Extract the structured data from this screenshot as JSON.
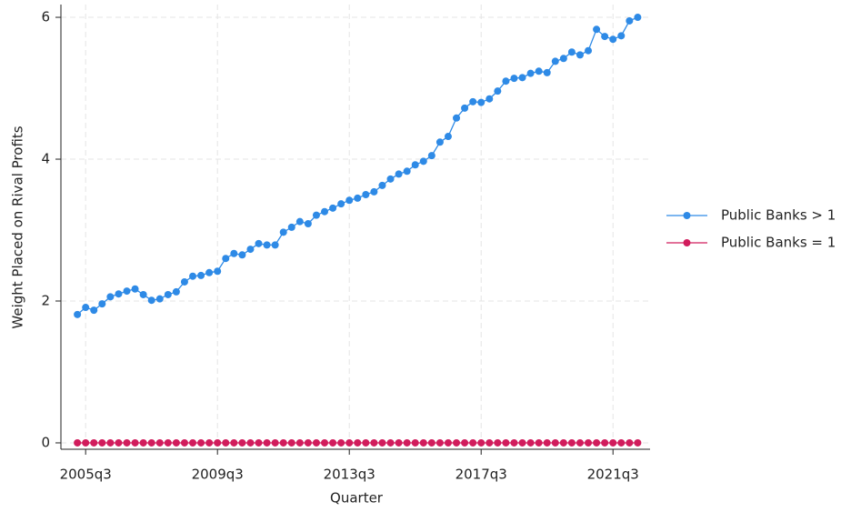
{
  "chart_data": {
    "type": "line",
    "x_label": "Quarter",
    "y_label": "Weight Placed on Rival Profits",
    "x": [
      181,
      182,
      183,
      184,
      185,
      186,
      187,
      188,
      189,
      190,
      191,
      192,
      193,
      194,
      195,
      196,
      197,
      198,
      199,
      200,
      201,
      202,
      203,
      204,
      205,
      206,
      207,
      208,
      209,
      210,
      211,
      212,
      213,
      214,
      215,
      216,
      217,
      218,
      219,
      220,
      221,
      222,
      223,
      224,
      225,
      226,
      227,
      228,
      229,
      230,
      231,
      232,
      233,
      234,
      235,
      236,
      237,
      238,
      239,
      240,
      241,
      242,
      243,
      244,
      245,
      246,
      247,
      248,
      249
    ],
    "series": [
      {
        "name": "Public Banks > 1",
        "color": "#2e8ae6",
        "values": [
          1.81,
          1.91,
          1.87,
          1.96,
          2.06,
          2.1,
          2.14,
          2.17,
          2.09,
          2.01,
          2.03,
          2.09,
          2.13,
          2.27,
          2.35,
          2.36,
          2.4,
          2.42,
          2.6,
          2.67,
          2.65,
          2.73,
          2.81,
          2.79,
          2.79,
          2.97,
          3.04,
          3.12,
          3.09,
          3.21,
          3.26,
          3.31,
          3.37,
          3.42,
          3.45,
          3.5,
          3.54,
          3.63,
          3.72,
          3.79,
          3.83,
          3.92,
          3.97,
          4.05,
          4.24,
          4.32,
          4.58,
          4.72,
          4.81,
          4.8,
          4.85,
          4.96,
          5.1,
          5.14,
          5.15,
          5.21,
          5.24,
          5.22,
          5.38,
          5.42,
          5.51,
          5.47,
          5.53,
          5.83,
          5.73,
          5.69,
          5.74,
          5.95,
          6.0
        ]
      },
      {
        "name": "Public Banks = 1",
        "color": "#d11c5c",
        "values": [
          0,
          0,
          0,
          0,
          0,
          0,
          0,
          0,
          0,
          0,
          0,
          0,
          0,
          0,
          0,
          0,
          0,
          0,
          0,
          0,
          0,
          0,
          0,
          0,
          0,
          0,
          0,
          0,
          0,
          0,
          0,
          0,
          0,
          0,
          0,
          0,
          0,
          0,
          0,
          0,
          0,
          0,
          0,
          0,
          0,
          0,
          0,
          0,
          0,
          0,
          0,
          0,
          0,
          0,
          0,
          0,
          0,
          0,
          0,
          0,
          0,
          0,
          0,
          0,
          0,
          0,
          0,
          0,
          0
        ]
      }
    ],
    "xlim": [
      179,
      250.5
    ],
    "xticks": [
      {
        "value": 182,
        "label": "2005q3"
      },
      {
        "value": 198,
        "label": "2009q3"
      },
      {
        "value": 214,
        "label": "2013q3"
      },
      {
        "value": 230,
        "label": "2017q3"
      },
      {
        "value": 246,
        "label": "2021q3"
      }
    ],
    "ylim": [
      -0.09,
      6.18
    ],
    "yticks": [
      0,
      2,
      4,
      6
    ],
    "grid": true,
    "legend": "right"
  }
}
